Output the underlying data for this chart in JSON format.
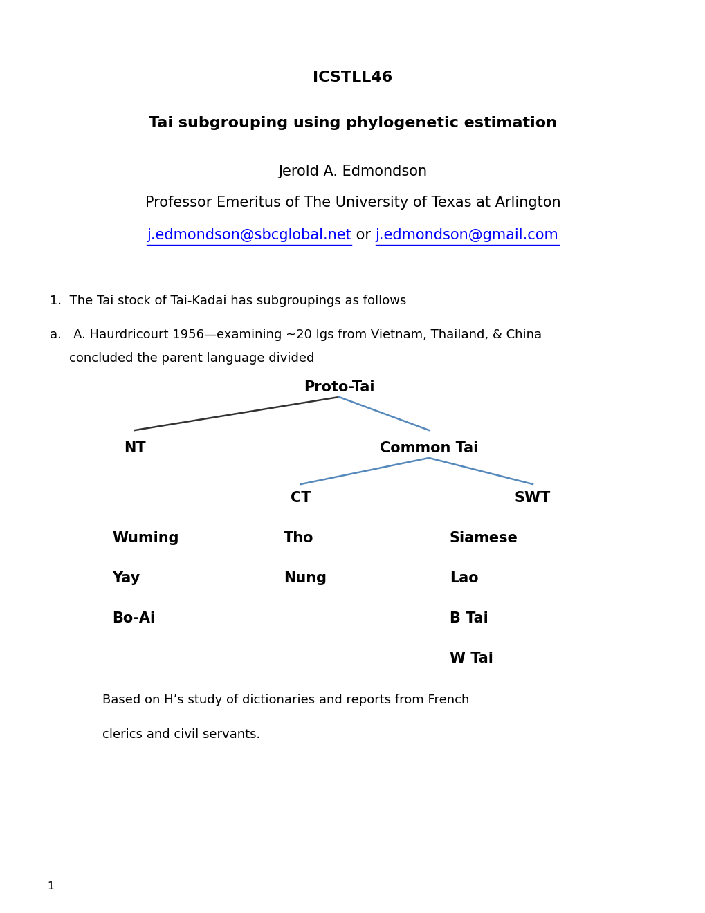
{
  "bg_color": "#ffffff",
  "title": "ICSTLL46",
  "subtitle": "Tai subgrouping using phylogenetic estimation",
  "author": "Jerold A. Edmondson",
  "affiliation": "Professor Emeritus of The University of Texas at Arlington",
  "email1": "j.edmondson@sbcglobal.net",
  "email_or": " or ",
  "email2": "j.edmondson@gmail.com",
  "item1": "1.  The Tai stock of Tai-Kadai has subgroupings as follows",
  "item_a": "a.   A. Haurdricourt 1956—examining ~20 lgs from Vietnam, Thailand, & China",
  "item_a2": "      concluded the parent language divided",
  "tree_proto": "Proto-Tai",
  "tree_nt": "NT",
  "tree_common": "Common Tai",
  "tree_ct": "CT",
  "tree_swt": "SWT",
  "col1": [
    "Wuming",
    "Yay",
    "Bo-Ai"
  ],
  "col2": [
    "Tho",
    "Nung"
  ],
  "col3": [
    "Siamese",
    "Lao",
    "B Tai",
    "W Tai"
  ],
  "footnote_line1": "Based on H’s study of dictionaries and reports from French",
  "footnote_line2": "clerics and civil servants.",
  "page_num": "1",
  "title_fontsize": 16,
  "subtitle_fontsize": 16,
  "author_fontsize": 15,
  "body_fontsize": 13,
  "tree_fontsize": 15,
  "footnote_fontsize": 13,
  "page_fontsize": 11
}
